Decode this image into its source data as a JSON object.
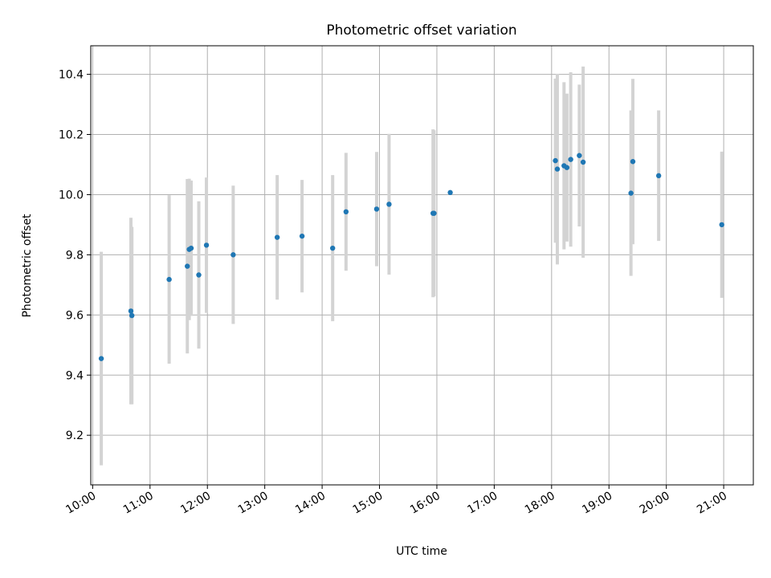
{
  "chart_data": {
    "type": "scatter",
    "title": "Photometric offset variation",
    "xlabel": "UTC time",
    "ylabel": "Photometric offset",
    "xlim": [
      "09:58",
      "21:31"
    ],
    "ylim": [
      9.035,
      10.495
    ],
    "grid": true,
    "x_ticks": [
      "10:00",
      "11:00",
      "12:00",
      "13:00",
      "14:00",
      "15:00",
      "16:00",
      "17:00",
      "18:00",
      "19:00",
      "20:00",
      "21:00"
    ],
    "y_ticks": [
      9.2,
      9.4,
      9.6,
      9.8,
      10.0,
      10.2,
      10.4
    ],
    "series": [
      {
        "marker_color": "#1f77b4",
        "errorbar_color": "#d3d3d3",
        "points": [
          {
            "x": "10:09",
            "y": 9.455,
            "err": 0.355
          },
          {
            "x": "10:40",
            "y": 9.613,
            "err": 0.31
          },
          {
            "x": "10:41",
            "y": 9.598,
            "err": 0.295
          },
          {
            "x": "11:20",
            "y": 9.718,
            "err": 0.28
          },
          {
            "x": "11:39",
            "y": 9.762,
            "err": 0.29
          },
          {
            "x": "11:41",
            "y": 9.818,
            "err": 0.235
          },
          {
            "x": "11:43",
            "y": 9.822,
            "err": 0.225
          },
          {
            "x": "11:51",
            "y": 9.733,
            "err": 0.245
          },
          {
            "x": "11:59",
            "y": 9.832,
            "err": 0.225
          },
          {
            "x": "12:27",
            "y": 9.8,
            "err": 0.23
          },
          {
            "x": "13:13",
            "y": 9.858,
            "err": 0.207
          },
          {
            "x": "13:39",
            "y": 9.862,
            "err": 0.187
          },
          {
            "x": "14:11",
            "y": 9.822,
            "err": 0.243
          },
          {
            "x": "14:25",
            "y": 9.943,
            "err": 0.196
          },
          {
            "x": "14:57",
            "y": 9.952,
            "err": 0.19
          },
          {
            "x": "15:10",
            "y": 9.968,
            "err": 0.234
          },
          {
            "x": "15:56",
            "y": 9.938,
            "err": 0.279
          },
          {
            "x": "15:57",
            "y": 9.938,
            "err": 0.276
          },
          {
            "x": "16:14",
            "y": 10.007,
            "err": 0.0
          },
          {
            "x": "18:04",
            "y": 10.113,
            "err": 0.273
          },
          {
            "x": "18:06",
            "y": 10.085,
            "err": 0.317
          },
          {
            "x": "18:13",
            "y": 10.096,
            "err": 0.278
          },
          {
            "x": "18:16",
            "y": 10.09,
            "err": 0.246
          },
          {
            "x": "18:20",
            "y": 10.117,
            "err": 0.29
          },
          {
            "x": "18:29",
            "y": 10.13,
            "err": 0.236
          },
          {
            "x": "18:33",
            "y": 10.108,
            "err": 0.318
          },
          {
            "x": "19:23",
            "y": 10.005,
            "err": 0.275
          },
          {
            "x": "19:25",
            "y": 10.11,
            "err": 0.275
          },
          {
            "x": "19:52",
            "y": 10.063,
            "err": 0.217
          },
          {
            "x": "20:58",
            "y": 9.9,
            "err": 0.243
          }
        ]
      }
    ]
  }
}
